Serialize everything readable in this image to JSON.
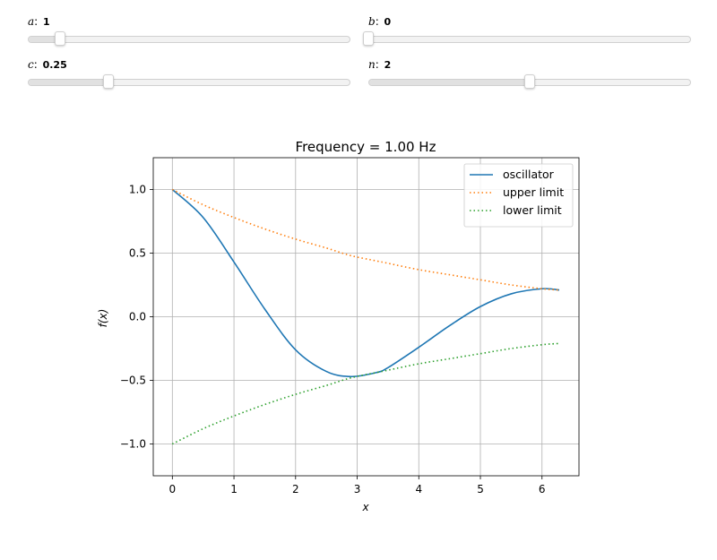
{
  "sliders": {
    "a": {
      "symbol": "a",
      "value": "1",
      "min": 0,
      "max": 10
    },
    "b": {
      "symbol": "b",
      "value": "0",
      "min": 0,
      "max": 10
    },
    "c": {
      "symbol": "c",
      "value": "0.25",
      "min": 0,
      "max": 1
    },
    "n": {
      "symbol": "n",
      "value": "2",
      "min": 0,
      "max": 4
    }
  },
  "chart_data": {
    "type": "line",
    "title": "Frequency = 1.00 Hz",
    "xlabel": "x",
    "ylabel": "f(x)",
    "xlim": [
      -0.31,
      6.6
    ],
    "ylim": [
      -1.25,
      1.25
    ],
    "xticks": [
      0,
      1,
      2,
      3,
      4,
      5,
      6
    ],
    "xtick_labels": [
      "0",
      "1",
      "2",
      "3",
      "4",
      "5",
      "6"
    ],
    "yticks": [
      -1.0,
      -0.5,
      0.0,
      0.5,
      1.0
    ],
    "ytick_labels": [
      "−1.0",
      "−0.5",
      "0.0",
      "0.5",
      "1.0"
    ],
    "grid": true,
    "legend_position": "top-right",
    "x": [
      0,
      0.5,
      1,
      1.5,
      2,
      2.5,
      2.9,
      3.3,
      3.5,
      4,
      4.5,
      5,
      5.5,
      6,
      6.28
    ],
    "series": [
      {
        "name": "oscillator",
        "style": "solid",
        "color": "#1f77b4",
        "values": [
          1.0,
          0.78,
          0.43,
          0.06,
          -0.26,
          -0.43,
          -0.47,
          -0.44,
          -0.4,
          -0.24,
          -0.07,
          0.08,
          0.18,
          0.22,
          0.21
        ]
      },
      {
        "name": "upper limit",
        "style": "dotted",
        "color": "#ff7f0e",
        "values": [
          1.0,
          0.88,
          0.78,
          0.69,
          0.61,
          0.54,
          0.48,
          0.44,
          0.42,
          0.37,
          0.33,
          0.29,
          0.25,
          0.22,
          0.21
        ]
      },
      {
        "name": "lower limit",
        "style": "dotted",
        "color": "#2ca02c",
        "values": [
          -1.0,
          -0.88,
          -0.78,
          -0.69,
          -0.61,
          -0.54,
          -0.48,
          -0.44,
          -0.42,
          -0.37,
          -0.33,
          -0.29,
          -0.25,
          -0.22,
          -0.21
        ]
      }
    ]
  }
}
